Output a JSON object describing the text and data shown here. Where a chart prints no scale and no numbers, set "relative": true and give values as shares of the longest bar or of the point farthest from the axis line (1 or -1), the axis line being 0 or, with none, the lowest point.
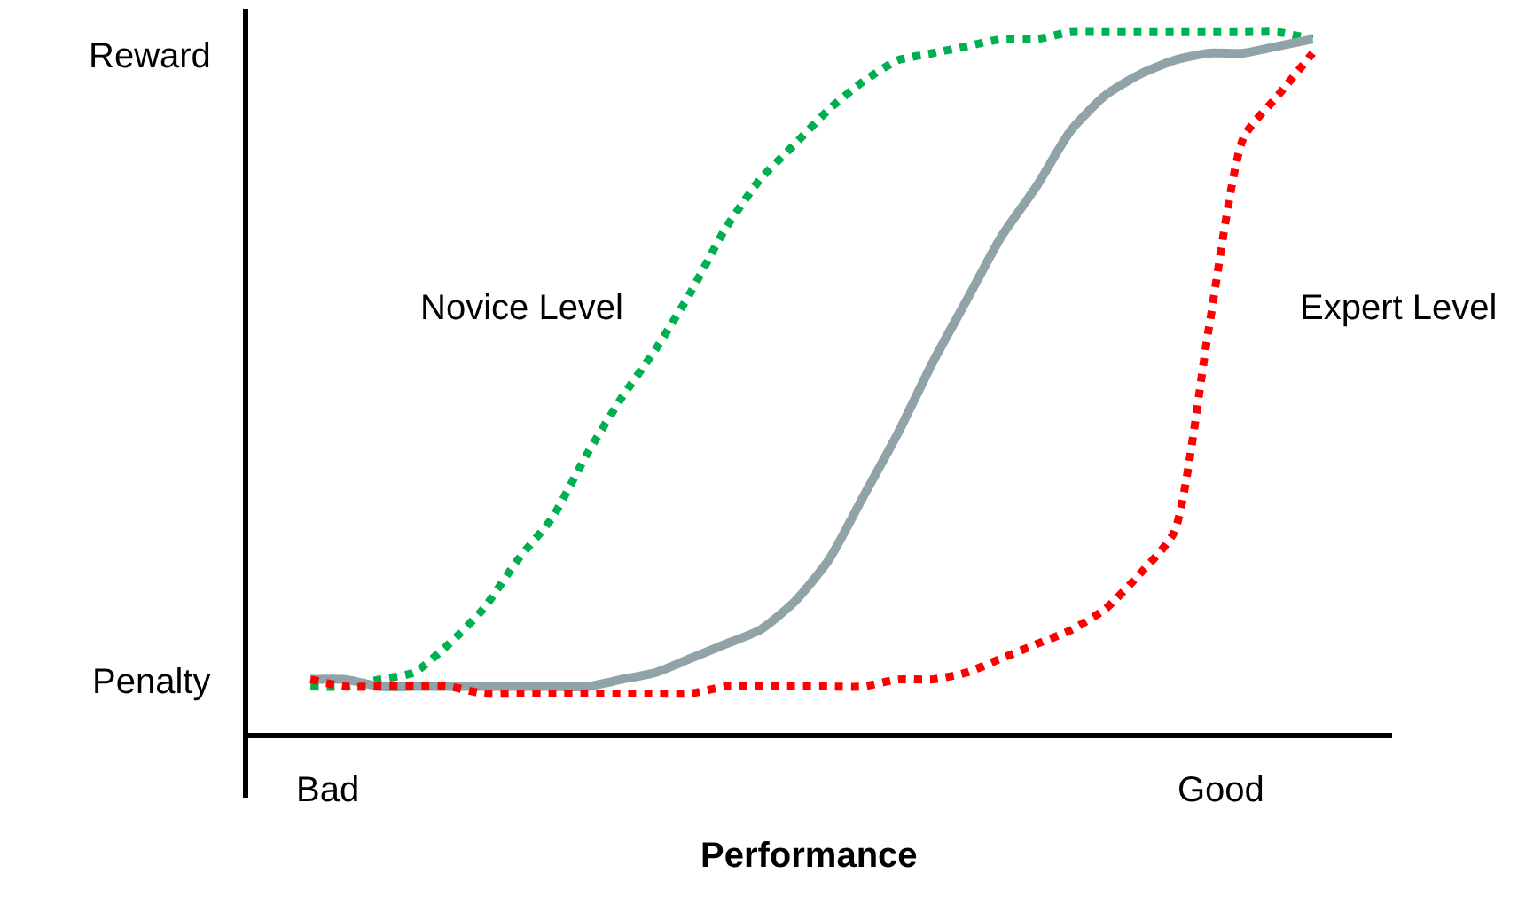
{
  "chart_data": {
    "type": "line",
    "relative": true,
    "xlabel": "Performance",
    "categories": [
      null,
      null,
      null,
      null,
      null,
      null,
      null,
      null,
      null,
      null,
      null,
      null,
      null,
      null,
      null,
      null,
      null,
      null,
      null,
      null,
      null,
      null,
      null,
      null,
      null,
      null,
      null,
      null,
      null,
      null
    ],
    "series": [
      {
        "name": "Novice Level",
        "color": "#00b050",
        "line_style": "dotted",
        "values": [
          0.07,
          0.07,
          0.08,
          0.09,
          0.13,
          0.18,
          0.25,
          0.31,
          0.4,
          0.48,
          0.55,
          0.63,
          0.72,
          0.79,
          0.84,
          0.89,
          0.93,
          0.96,
          0.97,
          0.98,
          0.99,
          0.99,
          1.0,
          1.0,
          1.0,
          1.0,
          1.0,
          1.0,
          1.0,
          0.99
        ]
      },
      {
        "color": "#8fa3a8",
        "line_style": "solid",
        "values": [
          0.08,
          0.08,
          0.07,
          0.07,
          0.07,
          0.07,
          0.07,
          0.07,
          0.07,
          0.08,
          0.09,
          0.11,
          0.13,
          0.15,
          0.19,
          0.25,
          0.34,
          0.43,
          0.53,
          0.62,
          0.71,
          0.78,
          0.86,
          0.91,
          0.94,
          0.96,
          0.97,
          0.97,
          0.98,
          0.99
        ]
      },
      {
        "name": "Expert Level",
        "color": "#ff0000",
        "line_style": "dotted",
        "values": [
          0.08,
          0.07,
          0.07,
          0.07,
          0.07,
          0.06,
          0.06,
          0.06,
          0.06,
          0.06,
          0.06,
          0.06,
          0.07,
          0.07,
          0.07,
          0.07,
          0.07,
          0.08,
          0.08,
          0.09,
          0.11,
          0.13,
          0.15,
          0.18,
          0.23,
          0.29,
          0.58,
          0.85,
          0.91,
          0.97
        ]
      }
    ],
    "annotations": [
      "Reward",
      "Penalty",
      "Bad",
      "Good"
    ],
    "legend": false,
    "marker": "none"
  }
}
